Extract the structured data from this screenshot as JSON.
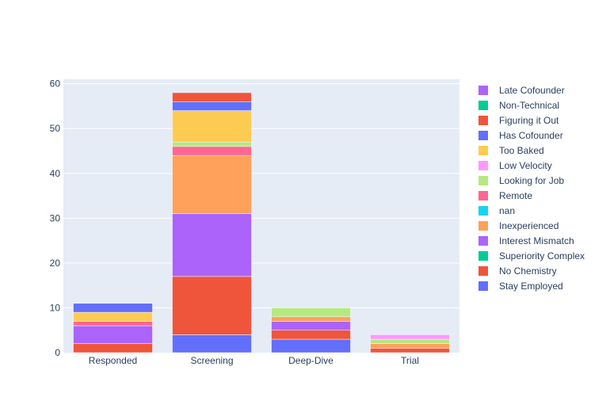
{
  "chart_data": {
    "type": "bar",
    "barmode": "stack",
    "title": "",
    "xlabel": "",
    "ylabel": "",
    "ylim": [
      0,
      61
    ],
    "yticks": [
      0,
      10,
      20,
      30,
      40,
      50,
      60
    ],
    "grid": true,
    "legend_position": "right",
    "categories": [
      "Responded",
      "Screening",
      "Deep-Dive",
      "Trial"
    ],
    "series": [
      {
        "name": "Stay Employed",
        "color": "#636efa",
        "values": [
          0,
          4,
          3,
          0
        ]
      },
      {
        "name": "No Chemistry",
        "color": "#ef553b",
        "values": [
          2,
          13,
          2,
          1
        ]
      },
      {
        "name": "Superiority Complex",
        "color": "#00cc96",
        "values": [
          0,
          0,
          0,
          0
        ]
      },
      {
        "name": "Interest Mismatch",
        "color": "#ab63fa",
        "values": [
          4,
          14,
          2,
          0
        ]
      },
      {
        "name": "Inexperienced",
        "color": "#ffa15a",
        "values": [
          0,
          13,
          1,
          1
        ]
      },
      {
        "name": "nan",
        "color": "#19d3f3",
        "values": [
          0,
          0,
          0,
          0
        ]
      },
      {
        "name": "Remote",
        "color": "#ff6692",
        "values": [
          1,
          2,
          0,
          0
        ]
      },
      {
        "name": "Looking for Job",
        "color": "#b6e880",
        "values": [
          0,
          1,
          2,
          1
        ]
      },
      {
        "name": "Low Velocity",
        "color": "#ff97ff",
        "values": [
          0,
          0,
          0,
          1
        ]
      },
      {
        "name": "Too Baked",
        "color": "#fecb52",
        "values": [
          2,
          7,
          0,
          0
        ]
      },
      {
        "name": "Has Cofounder",
        "color": "#636efa",
        "values": [
          2,
          2,
          0,
          0
        ]
      },
      {
        "name": "Figuring it Out",
        "color": "#ef553b",
        "values": [
          0,
          2,
          0,
          0
        ]
      },
      {
        "name": "Non-Technical",
        "color": "#00cc96",
        "values": [
          0,
          0,
          0,
          0
        ]
      },
      {
        "name": "Late Cofounder",
        "color": "#ab63fa",
        "values": [
          0,
          0,
          0,
          0
        ]
      }
    ]
  }
}
